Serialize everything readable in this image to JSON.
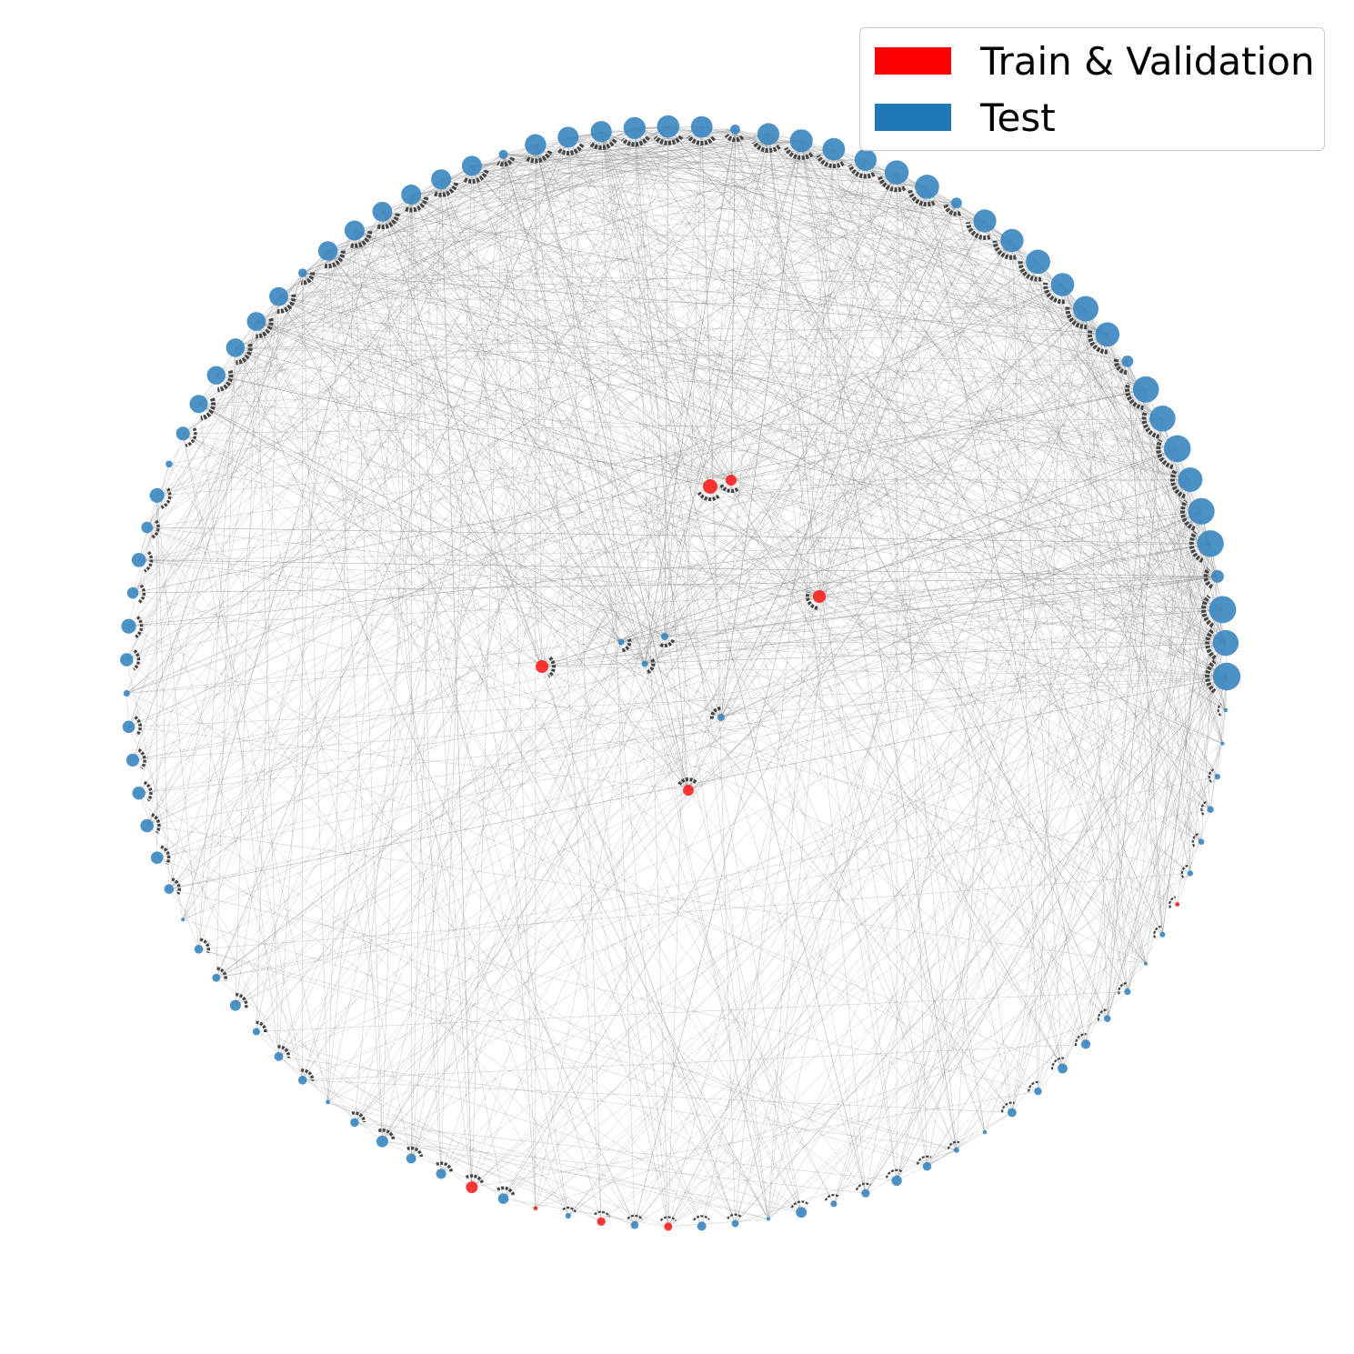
{
  "legend": {
    "train_label": "Train & Validation",
    "test_label": "Test",
    "train_color": "#ff0000",
    "test_color": "#1f77b4"
  },
  "colors": {
    "edge": "#888888",
    "arrowhead": "#444444",
    "train_node": "#ff2020",
    "test_node": "#3a86c0"
  },
  "graph": {
    "layout": "circular",
    "node_count": 103,
    "inner_train_nodes": 5,
    "inner_test_nodes": 4
  }
}
